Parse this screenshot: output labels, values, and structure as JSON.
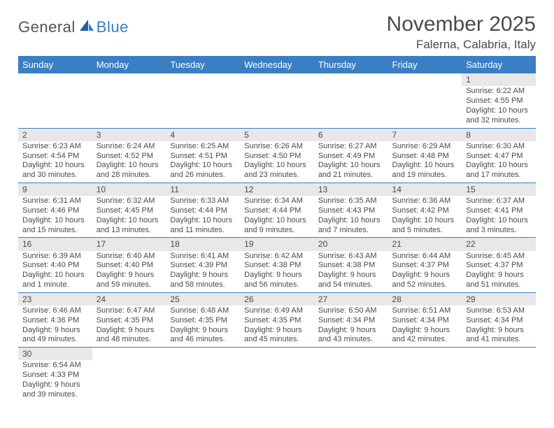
{
  "logo": {
    "part1": "General",
    "part2": "Blue"
  },
  "title": "November 2025",
  "location": "Falerna, Calabria, Italy",
  "colors": {
    "header_bg": "#3a7fc4",
    "header_text": "#ffffff",
    "daynum_bg": "#e8e8e8",
    "text": "#4a4a4a",
    "row_divider": "#3a7fc4",
    "logo_blue": "#3a7fc4"
  },
  "weekdays": [
    "Sunday",
    "Monday",
    "Tuesday",
    "Wednesday",
    "Thursday",
    "Friday",
    "Saturday"
  ],
  "weeks": [
    [
      null,
      null,
      null,
      null,
      null,
      null,
      {
        "n": "1",
        "sr": "Sunrise: 6:22 AM",
        "ss": "Sunset: 4:55 PM",
        "dl": "Daylight: 10 hours and 32 minutes."
      }
    ],
    [
      {
        "n": "2",
        "sr": "Sunrise: 6:23 AM",
        "ss": "Sunset: 4:54 PM",
        "dl": "Daylight: 10 hours and 30 minutes."
      },
      {
        "n": "3",
        "sr": "Sunrise: 6:24 AM",
        "ss": "Sunset: 4:52 PM",
        "dl": "Daylight: 10 hours and 28 minutes."
      },
      {
        "n": "4",
        "sr": "Sunrise: 6:25 AM",
        "ss": "Sunset: 4:51 PM",
        "dl": "Daylight: 10 hours and 26 minutes."
      },
      {
        "n": "5",
        "sr": "Sunrise: 6:26 AM",
        "ss": "Sunset: 4:50 PM",
        "dl": "Daylight: 10 hours and 23 minutes."
      },
      {
        "n": "6",
        "sr": "Sunrise: 6:27 AM",
        "ss": "Sunset: 4:49 PM",
        "dl": "Daylight: 10 hours and 21 minutes."
      },
      {
        "n": "7",
        "sr": "Sunrise: 6:29 AM",
        "ss": "Sunset: 4:48 PM",
        "dl": "Daylight: 10 hours and 19 minutes."
      },
      {
        "n": "8",
        "sr": "Sunrise: 6:30 AM",
        "ss": "Sunset: 4:47 PM",
        "dl": "Daylight: 10 hours and 17 minutes."
      }
    ],
    [
      {
        "n": "9",
        "sr": "Sunrise: 6:31 AM",
        "ss": "Sunset: 4:46 PM",
        "dl": "Daylight: 10 hours and 15 minutes."
      },
      {
        "n": "10",
        "sr": "Sunrise: 6:32 AM",
        "ss": "Sunset: 4:45 PM",
        "dl": "Daylight: 10 hours and 13 minutes."
      },
      {
        "n": "11",
        "sr": "Sunrise: 6:33 AM",
        "ss": "Sunset: 4:44 PM",
        "dl": "Daylight: 10 hours and 11 minutes."
      },
      {
        "n": "12",
        "sr": "Sunrise: 6:34 AM",
        "ss": "Sunset: 4:44 PM",
        "dl": "Daylight: 10 hours and 9 minutes."
      },
      {
        "n": "13",
        "sr": "Sunrise: 6:35 AM",
        "ss": "Sunset: 4:43 PM",
        "dl": "Daylight: 10 hours and 7 minutes."
      },
      {
        "n": "14",
        "sr": "Sunrise: 6:36 AM",
        "ss": "Sunset: 4:42 PM",
        "dl": "Daylight: 10 hours and 5 minutes."
      },
      {
        "n": "15",
        "sr": "Sunrise: 6:37 AM",
        "ss": "Sunset: 4:41 PM",
        "dl": "Daylight: 10 hours and 3 minutes."
      }
    ],
    [
      {
        "n": "16",
        "sr": "Sunrise: 6:39 AM",
        "ss": "Sunset: 4:40 PM",
        "dl": "Daylight: 10 hours and 1 minute."
      },
      {
        "n": "17",
        "sr": "Sunrise: 6:40 AM",
        "ss": "Sunset: 4:40 PM",
        "dl": "Daylight: 9 hours and 59 minutes."
      },
      {
        "n": "18",
        "sr": "Sunrise: 6:41 AM",
        "ss": "Sunset: 4:39 PM",
        "dl": "Daylight: 9 hours and 58 minutes."
      },
      {
        "n": "19",
        "sr": "Sunrise: 6:42 AM",
        "ss": "Sunset: 4:38 PM",
        "dl": "Daylight: 9 hours and 56 minutes."
      },
      {
        "n": "20",
        "sr": "Sunrise: 6:43 AM",
        "ss": "Sunset: 4:38 PM",
        "dl": "Daylight: 9 hours and 54 minutes."
      },
      {
        "n": "21",
        "sr": "Sunrise: 6:44 AM",
        "ss": "Sunset: 4:37 PM",
        "dl": "Daylight: 9 hours and 52 minutes."
      },
      {
        "n": "22",
        "sr": "Sunrise: 6:45 AM",
        "ss": "Sunset: 4:37 PM",
        "dl": "Daylight: 9 hours and 51 minutes."
      }
    ],
    [
      {
        "n": "23",
        "sr": "Sunrise: 6:46 AM",
        "ss": "Sunset: 4:36 PM",
        "dl": "Daylight: 9 hours and 49 minutes."
      },
      {
        "n": "24",
        "sr": "Sunrise: 6:47 AM",
        "ss": "Sunset: 4:35 PM",
        "dl": "Daylight: 9 hours and 48 minutes."
      },
      {
        "n": "25",
        "sr": "Sunrise: 6:48 AM",
        "ss": "Sunset: 4:35 PM",
        "dl": "Daylight: 9 hours and 46 minutes."
      },
      {
        "n": "26",
        "sr": "Sunrise: 6:49 AM",
        "ss": "Sunset: 4:35 PM",
        "dl": "Daylight: 9 hours and 45 minutes."
      },
      {
        "n": "27",
        "sr": "Sunrise: 6:50 AM",
        "ss": "Sunset: 4:34 PM",
        "dl": "Daylight: 9 hours and 43 minutes."
      },
      {
        "n": "28",
        "sr": "Sunrise: 6:51 AM",
        "ss": "Sunset: 4:34 PM",
        "dl": "Daylight: 9 hours and 42 minutes."
      },
      {
        "n": "29",
        "sr": "Sunrise: 6:53 AM",
        "ss": "Sunset: 4:34 PM",
        "dl": "Daylight: 9 hours and 41 minutes."
      }
    ],
    [
      {
        "n": "30",
        "sr": "Sunrise: 6:54 AM",
        "ss": "Sunset: 4:33 PM",
        "dl": "Daylight: 9 hours and 39 minutes."
      },
      null,
      null,
      null,
      null,
      null,
      null
    ]
  ]
}
